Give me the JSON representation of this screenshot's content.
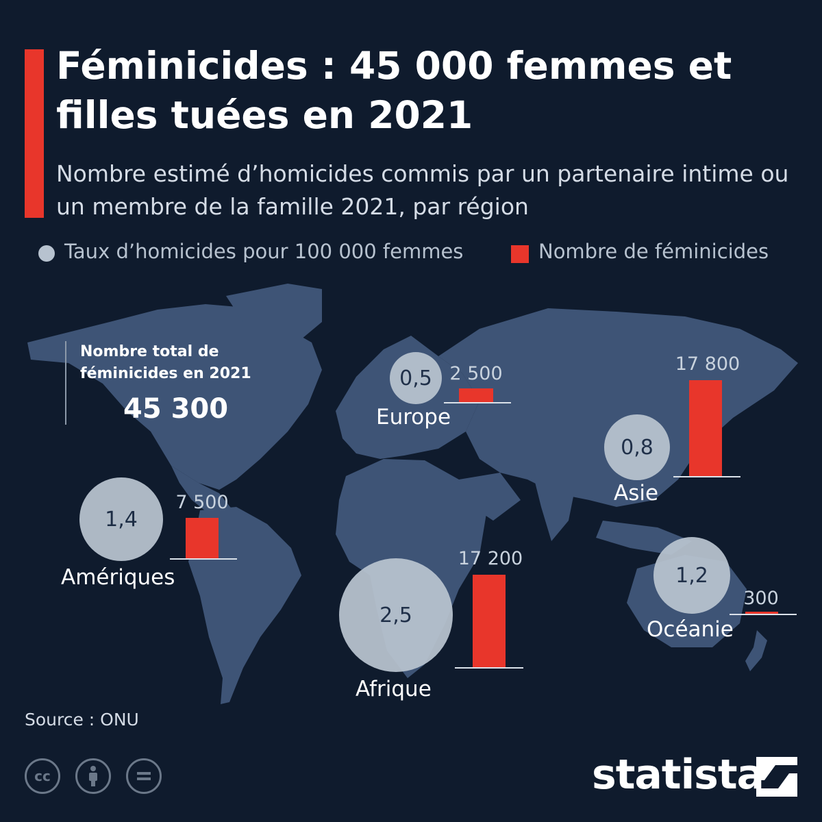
{
  "header": {
    "title": "Féminicides : 45 000 femmes et filles tuées en 2021",
    "subtitle": "Nombre estimé d’homicides commis par un partenaire intime ou un membre de la famille 2021, par région"
  },
  "legend": {
    "rate_label": "Taux d’homicides pour 100 000 femmes",
    "count_label": "Nombre de féminicides"
  },
  "total": {
    "label": "Nombre total de féminicides en 2021",
    "value": "45 300"
  },
  "colors": {
    "background": "#0f1b2d",
    "accent": "#e8362b",
    "circle": "#b9c4d0",
    "land": "#3e5476"
  },
  "chart_data": {
    "type": "bar",
    "categories": [
      "Europe",
      "Asie",
      "Amériques",
      "Afrique",
      "Océanie"
    ],
    "series": [
      {
        "name": "Taux d’homicides pour 100 000 femmes",
        "values": [
          0.5,
          0.8,
          1.4,
          2.5,
          1.2
        ],
        "labels": [
          "0,5",
          "0,8",
          "1,4",
          "2,5",
          "1,2"
        ]
      },
      {
        "name": "Nombre de féminicides",
        "values": [
          2500,
          17800,
          7500,
          17200,
          300
        ],
        "labels": [
          "2 500",
          "17 800",
          "7 500",
          "17 200",
          "300"
        ]
      }
    ]
  },
  "source": "Source : ONU",
  "license_icons": [
    "cc-icon",
    "attribution-icon",
    "no-derivatives-icon"
  ],
  "brand": {
    "name": "statista"
  }
}
